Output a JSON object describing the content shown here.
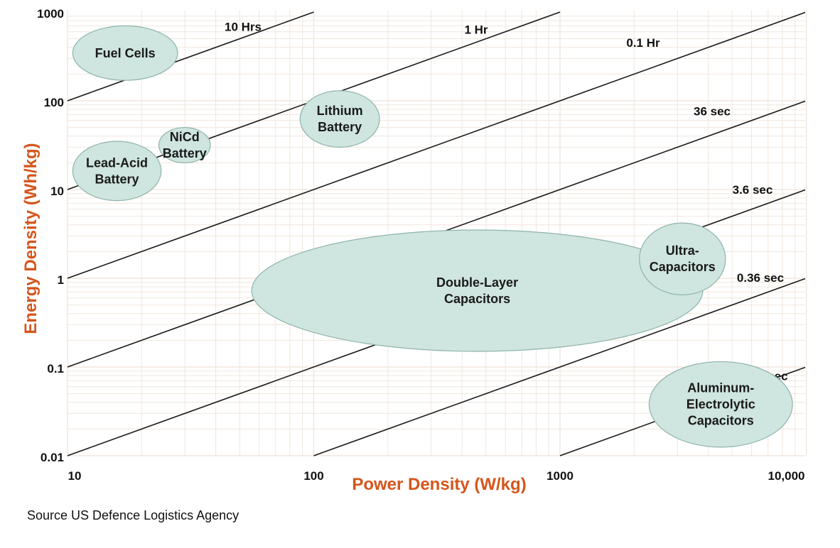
{
  "chart_data": {
    "type": "scatter",
    "subtype": "ragone-plot",
    "xlabel": "Power Density (W/kg)",
    "ylabel": "Energy Density (Wh/kg)",
    "x_scale": "log",
    "y_scale": "log",
    "xlim": [
      10,
      12000
    ],
    "ylim": [
      0.01,
      1000
    ],
    "grid": true,
    "x_ticks": [
      {
        "value": 10,
        "label": "10"
      },
      {
        "value": 100,
        "label": "100"
      },
      {
        "value": 1000,
        "label": "1000"
      },
      {
        "value": 10000,
        "label": "10,000"
      }
    ],
    "y_ticks": [
      {
        "value": 1000,
        "label": "1000"
      },
      {
        "value": 100,
        "label": "100"
      },
      {
        "value": 10,
        "label": "10"
      },
      {
        "value": 1,
        "label": "1"
      },
      {
        "value": 0.1,
        "label": "0.1"
      },
      {
        "value": 0.01,
        "label": "0.01"
      }
    ],
    "time_constant_lines": [
      {
        "label": "10 Hrs",
        "hours": 10
      },
      {
        "label": "1 Hr",
        "hours": 1
      },
      {
        "label": "0.1 Hr",
        "hours": 0.1
      },
      {
        "label": "36 sec",
        "hours": 0.01
      },
      {
        "label": "3.6 sec",
        "hours": 0.001
      },
      {
        "label": "0.36 sec",
        "hours": 0.0001
      },
      {
        "label": "36 msec",
        "hours": 1e-05
      }
    ],
    "regions": [
      {
        "lines": [
          "Fuel Cells"
        ],
        "x_range": [
          10.5,
          28
        ],
        "y_range": [
          170,
          700
        ]
      },
      {
        "lines": [
          "Lead-Acid",
          "Battery"
        ],
        "x_range": [
          10.5,
          24
        ],
        "y_range": [
          7.5,
          35
        ]
      },
      {
        "lines": [
          "NiCd",
          "Battery"
        ],
        "x_range": [
          23.5,
          38
        ],
        "y_range": [
          20,
          50
        ]
      },
      {
        "lines": [
          "Lithium",
          "Battery"
        ],
        "x_range": [
          88,
          185
        ],
        "y_range": [
          30,
          130
        ]
      },
      {
        "lines": [
          "Double-Layer",
          "Capacitors"
        ],
        "x_range": [
          56,
          3800
        ],
        "y_range": [
          0.15,
          3.5
        ]
      },
      {
        "lines": [
          "Ultra-",
          "Capacitors"
        ],
        "x_range": [
          2100,
          4700
        ],
        "y_range": [
          0.65,
          4.2
        ]
      },
      {
        "lines": [
          "Aluminum-",
          "Electrolytic",
          "Capacitors"
        ],
        "x_range": [
          2300,
          8800
        ],
        "y_range": [
          0.0125,
          0.115
        ]
      }
    ],
    "source": "Source US Defence Logistics Agency"
  },
  "colors": {
    "region_fill": "#cfe5df",
    "region_stroke": "#8fb4aa",
    "axis_title": "#d4561c",
    "grid": "#f0e6dd",
    "line": "#1a1a1a"
  }
}
